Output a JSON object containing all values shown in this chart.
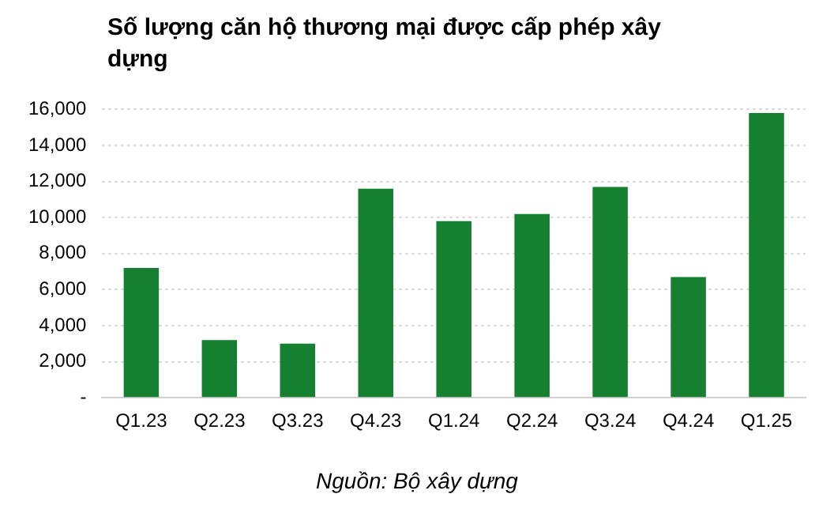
{
  "chart_data": {
    "type": "bar",
    "title": "Số lượng căn hộ thương mại được cấp phép xây dựng",
    "categories": [
      "Q1.23",
      "Q2.23",
      "Q3.23",
      "Q4.23",
      "Q1.24",
      "Q2.24",
      "Q3.24",
      "Q4.24",
      "Q1.25"
    ],
    "values": [
      7200,
      3200,
      3000,
      11600,
      9800,
      10200,
      11700,
      6700,
      15800
    ],
    "color": "#158030",
    "ylim": [
      0,
      16000
    ],
    "yticks": [
      {
        "value": 0,
        "label": "-"
      },
      {
        "value": 2000,
        "label": "2,000"
      },
      {
        "value": 4000,
        "label": "4,000"
      },
      {
        "value": 6000,
        "label": "6,000"
      },
      {
        "value": 8000,
        "label": "8,000"
      },
      {
        "value": 10000,
        "label": "10,000"
      },
      {
        "value": 12000,
        "label": "12,000"
      },
      {
        "value": 14000,
        "label": "14,000"
      },
      {
        "value": 16000,
        "label": "16,000"
      }
    ],
    "grid": "y",
    "annotations": [
      "Nguồn: Bộ xây dựng"
    ]
  }
}
